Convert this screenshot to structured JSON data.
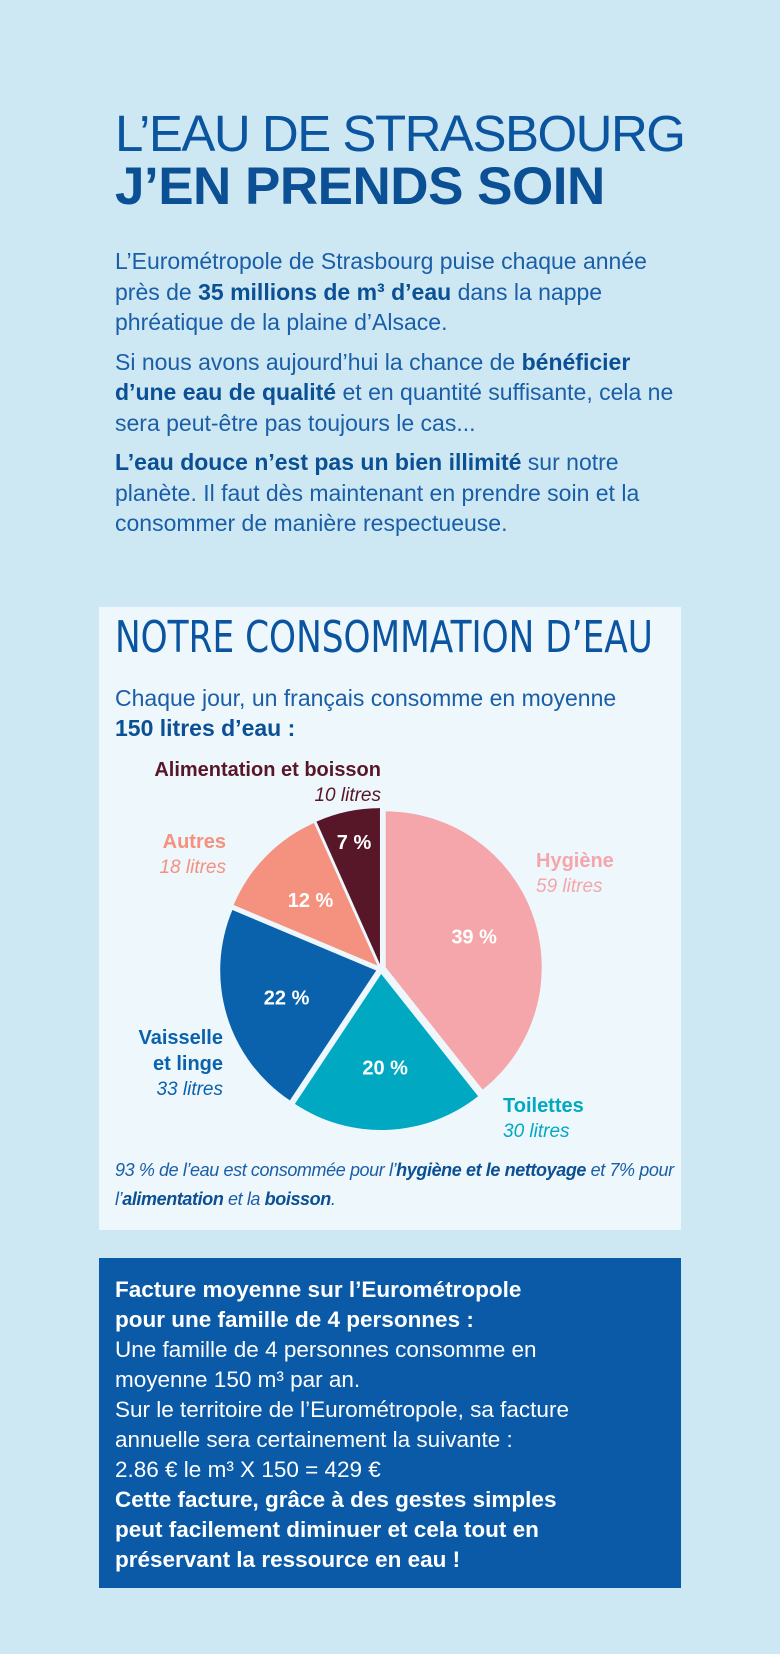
{
  "header": {
    "title_line1": "L’EAU DE STRASBOURG",
    "title_line2": "J’EN PRENDS SOIN"
  },
  "intro": {
    "p1_a": "L’Eurométropole de Strasbourg puise chaque année près de ",
    "p1_bold": "35 millions de m³ d’eau",
    "p1_b": " dans la nappe phréatique de la plaine d’Alsace.",
    "p2_a": "Si nous avons aujourd’hui la chance de ",
    "p2_bold": "bénéficier d’une eau de qualité",
    "p2_b": " et en quantité suffisante, cela ne sera peut-être pas toujours le cas...",
    "p3_bold": "L’eau douce n’est pas un bien illimité",
    "p3_b": " sur notre planète. Il faut dès maintenant en prendre soin et la consommer de manière respectueuse."
  },
  "consumption": {
    "title": "NOTRE CONSOMMATION D’EAU",
    "sub_a": "Chaque jour, un français consomme en moyenne ",
    "sub_bold": "150 litres d’eau :",
    "note_1": "93 % de l’eau est consommée pour l’",
    "note_bold1": "hygiène et le nettoyage",
    "note_2": " et 7% pour l’",
    "note_bold2": "alimentation",
    "note_3": " et la ",
    "note_bold3": "boisson",
    "note_4": "."
  },
  "chart_data": {
    "type": "pie",
    "unit": "litres",
    "slices": [
      {
        "name": "Hygiène",
        "litres_label": "59 litres",
        "value": 59,
        "percent_label": "39 %",
        "color": "#f4a6ab"
      },
      {
        "name": "Toilettes",
        "litres_label": "30 litres",
        "value": 30,
        "percent_label": "20 %",
        "color": "#00a8c2"
      },
      {
        "name": "Vaisselle et linge",
        "litres_label": "33 litres",
        "value": 33,
        "percent_label": "22 %",
        "color": "#0a62ad"
      },
      {
        "name": "Autres",
        "litres_label": "18 litres",
        "value": 18,
        "percent_label": "12 %",
        "color": "#f4917f"
      },
      {
        "name": "Alimentation et boisson",
        "litres_label": "10 litres",
        "value": 10,
        "percent_label": "7 %",
        "color": "#581728"
      }
    ]
  },
  "bill": {
    "heading1": "Facture moyenne sur l’Eurométropole",
    "heading2": "pour une famille de 4 personnes :",
    "line1": "Une famille de 4 personnes consomme en",
    "line2": "moyenne 150 m³ par an.",
    "line3": "Sur le territoire de l’Eurométropole, sa facture",
    "line4": "annuelle sera certainement la suivante :",
    "line5": "2.86 € le m³ X 150 = 429 €",
    "closing1": "Cette facture, grâce à des gestes simples",
    "closing2": "peut facilement diminuer et cela tout en",
    "closing3": "préservant la ressource en eau !"
  }
}
